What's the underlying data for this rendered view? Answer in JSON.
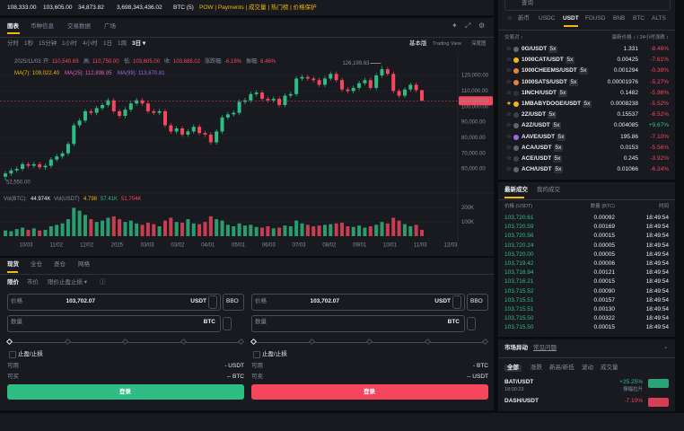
{
  "top_bar": {
    "stats": [
      "108,333.00",
      "103,605.00",
      "34,873.82",
      "3,698,343,436.02",
      "BTC (5)"
    ],
    "links": "POW | Payments | 成交量 | 热门榜 | 价格保护",
    "search": "查询"
  },
  "chart_tabs": [
    "图表",
    "币种信息",
    "交易数据",
    "广场"
  ],
  "intervals": [
    "分时",
    "1秒",
    "15分钟",
    "1小时",
    "4小时",
    "1日",
    "1周",
    "3日 ▾"
  ],
  "views": [
    "基本版",
    "Trading View",
    "深度图"
  ],
  "chart_data": {
    "type": "candlestick",
    "info": [
      {
        "label": "2025/11/03",
        "value": ""
      },
      {
        "label": "开:",
        "value": "110,540.69"
      },
      {
        "label": "高:",
        "value": "110,750.00"
      },
      {
        "label": "低:",
        "value": "103,605.00"
      },
      {
        "label": "收:",
        "value": "103,688.02"
      },
      {
        "label": "涨跌幅:",
        "value": "-6.19%"
      },
      {
        "label": "振幅:",
        "value": "6.46%"
      }
    ],
    "ma": [
      {
        "label": "MA(7):",
        "value": "109,022.40",
        "color": "#f0b90b"
      },
      {
        "label": "MA(25):",
        "value": "112,898.95",
        "color": "#e55fb8"
      },
      {
        "label": "MA(99):",
        "value": "113,870.81",
        "color": "#9c6ade"
      }
    ],
    "up_color": "#2ebd85",
    "down_color": "#f6465d",
    "open": [
      55000,
      57000,
      59000,
      60000,
      63000,
      62000,
      63000,
      61000,
      62000,
      66000,
      68000,
      70000,
      76000,
      88000,
      91000,
      97000,
      96000,
      99000,
      101000,
      104000,
      97000,
      94000,
      98000,
      102000,
      104000,
      102000,
      97000,
      96000,
      97000,
      88000,
      84000,
      86000,
      82000,
      84000,
      87000,
      83000,
      82000,
      77000,
      84000,
      93000,
      95000,
      96000,
      103000,
      104000,
      108000,
      109000,
      105000,
      104000,
      105000,
      101000,
      107000,
      108000,
      118000,
      119000,
      118000,
      117000,
      114000,
      118000,
      121000,
      117000,
      111000,
      110000,
      112000,
      115000,
      117000,
      112000,
      120000,
      124000,
      121000,
      110000,
      107000,
      111000,
      114000,
      110540.69
    ],
    "high": [
      58500,
      60500,
      61500,
      64500,
      64500,
      64500,
      64500,
      63500,
      67500,
      69500,
      71500,
      77500,
      89500,
      92500,
      98500,
      98500,
      100500,
      102500,
      105500,
      105500,
      98500,
      99500,
      103500,
      105500,
      105500,
      103500,
      98500,
      98500,
      98500,
      89500,
      87500,
      87500,
      85500,
      88500,
      88500,
      84500,
      83500,
      85500,
      94500,
      96500,
      97500,
      104500,
      105500,
      109500,
      110500,
      110500,
      106500,
      106500,
      106500,
      108500,
      109500,
      119500,
      120500,
      120500,
      119500,
      118500,
      119500,
      122500,
      122500,
      118500,
      112500,
      113500,
      116500,
      118500,
      118500,
      121500,
      126199.63,
      125500,
      122500,
      111500,
      112500,
      115500,
      115500,
      110750
    ],
    "low": [
      52550,
      55500,
      57500,
      58500,
      60500,
      60500,
      59500,
      59500,
      60500,
      64500,
      66500,
      68500,
      74500,
      86500,
      89500,
      94500,
      94500,
      97500,
      99500,
      95500,
      92500,
      92500,
      96500,
      100500,
      100500,
      95500,
      94500,
      94500,
      86500,
      82500,
      82500,
      80500,
      80500,
      82500,
      81500,
      80500,
      75500,
      75500,
      82500,
      91500,
      93500,
      94500,
      101500,
      102500,
      106500,
      103500,
      102500,
      102500,
      99500,
      99500,
      105500,
      106500,
      116500,
      116500,
      115500,
      112500,
      112500,
      116500,
      115500,
      109500,
      108500,
      108500,
      110500,
      113500,
      110500,
      110500,
      118500,
      119500,
      108500,
      105500,
      105500,
      109500,
      109000,
      103605
    ],
    "close": [
      57000,
      59000,
      60000,
      63000,
      62000,
      63000,
      61000,
      62000,
      66000,
      68000,
      70000,
      76000,
      88000,
      91000,
      97000,
      96000,
      99000,
      101000,
      104000,
      97000,
      94000,
      98000,
      102000,
      104000,
      102000,
      97000,
      96000,
      97000,
      88000,
      84000,
      86000,
      82000,
      84000,
      87000,
      83000,
      82000,
      77000,
      84000,
      93000,
      95000,
      96000,
      103000,
      104000,
      108000,
      109000,
      105000,
      104000,
      105000,
      101000,
      107000,
      108000,
      118000,
      119000,
      118000,
      117000,
      114000,
      118000,
      121000,
      117000,
      111000,
      110000,
      112000,
      115000,
      117000,
      112000,
      120000,
      124000,
      121000,
      110000,
      107000,
      111000,
      114000,
      110540.69,
      103688.02
    ],
    "volume": [
      40000,
      35000,
      50000,
      60000,
      45000,
      55000,
      40000,
      45000,
      70000,
      80000,
      90000,
      120000,
      200000,
      180000,
      150000,
      120000,
      100000,
      110000,
      130000,
      140000,
      120000,
      100000,
      110000,
      90000,
      80000,
      95000,
      85000,
      70000,
      110000,
      130000,
      100000,
      95000,
      120000,
      90000,
      85000,
      100000,
      140000,
      120000,
      110000,
      80000,
      70000,
      90000,
      75000,
      80000,
      65000,
      60000,
      70000,
      55000,
      60000,
      75000,
      70000,
      110000,
      90000,
      80000,
      70000,
      75000,
      80000,
      85000,
      90000,
      95000,
      70000,
      65000,
      75000,
      60000,
      70000,
      80000,
      100000,
      90000,
      130000,
      110000,
      85000,
      70000,
      80000,
      45000
    ],
    "ylim": [
      50000,
      129000
    ],
    "yticks": [
      {
        "value": 120000,
        "label": "120,000.00"
      },
      {
        "value": 110000,
        "label": "110,000.00"
      },
      {
        "value": 100000,
        "label": "100,000.00"
      },
      {
        "value": 90000,
        "label": "90,000.00"
      },
      {
        "value": 80000,
        "label": "80,000.00"
      },
      {
        "value": 70000,
        "label": "70,000.00"
      },
      {
        "value": 60000,
        "label": "60,000.00"
      }
    ],
    "last_price_label": "103,688.02",
    "high_label": "126,199.63",
    "low_label": "52,550.00",
    "vol_ylim": [
      0,
      260000
    ],
    "vol_ticks": [
      {
        "value": 200000,
        "label": "200K"
      },
      {
        "value": 100000,
        "label": "100K"
      }
    ],
    "vol_legend": [
      "Vol(BTC):",
      "44.974K",
      "Vol(USDT)",
      "4.798",
      "57.41K",
      "51.704K"
    ],
    "x_labels": [
      "10/03",
      "11/02",
      "12/02",
      "2025",
      "03/03",
      "03/02",
      "04/01",
      "05/01",
      "06/03",
      "07/03",
      "08/02",
      "09/01",
      "10/01",
      "11/03",
      "12/03"
    ]
  },
  "order_form": {
    "tabs": [
      "现货",
      "全仓",
      "逐仓",
      "网格"
    ],
    "types": [
      "限价",
      "市价",
      "限价止盈止损 ▾"
    ],
    "buy": {
      "price_label": "价格",
      "price": "103,702.07",
      "quote": "USDT",
      "bbo": "BBO",
      "qty_label": "数量",
      "base": "BTC",
      "tpsl": "止盈/止损",
      "avail_label": "可用",
      "avail": "- USDT",
      "max_label": "可买",
      "max": "-- BTC",
      "button": "登录"
    },
    "sell": {
      "price_label": "价格",
      "price": "103,702.07",
      "quote": "USDT",
      "bbo": "BBO",
      "qty_label": "数量",
      "base": "BTC",
      "tpsl": "止盈/止损",
      "avail_label": "可用",
      "avail": "- BTC",
      "max_label": "可卖",
      "max": "-- USDT",
      "button": "登录"
    }
  },
  "markets": {
    "tabs": [
      "☆",
      "新币",
      "USDC",
      "USDT",
      "FDUSD",
      "BNB",
      "BTC",
      "ALTS"
    ],
    "header": [
      "交易对 ↕",
      "最新价格 ↕ / 24小时涨跌 ↕"
    ],
    "rows": [
      [
        "0G/USDT",
        "5x",
        "1.331",
        "-8.46%"
      ],
      [
        "1000CAT/USDT",
        "5x",
        "0.00425",
        "-7.61%"
      ],
      [
        "1000CHEEMS/USDT",
        "5x",
        "0.001294",
        "-0.38%"
      ],
      [
        "1000SATS/USDT",
        "5x",
        "0.00001976",
        "-5.27%"
      ],
      [
        "1INCH/USDT",
        "5x",
        "0.1482",
        "-5.96%"
      ],
      [
        "1MBABYDOGE/USDT",
        "5x",
        "0.0008238",
        "-5.52%"
      ],
      [
        "2Z/USDT",
        "5x",
        "0.15537",
        "-6.52%"
      ],
      [
        "A2Z/USDT",
        "5x",
        "0.004085",
        "+9.67%"
      ],
      [
        "AAVE/USDT",
        "5x",
        "195.86",
        "-7.10%"
      ],
      [
        "ACA/USDT",
        "5x",
        "0.0153",
        "-5.56%"
      ],
      [
        "ACE/USDT",
        "5x",
        "0.245",
        "-3.92%"
      ],
      [
        "ACH/USDT",
        "5x",
        "0.01066",
        "-6.24%"
      ]
    ]
  },
  "trades": {
    "tabs": [
      "最新成交",
      "我的成交"
    ],
    "header": [
      "价格 (USDT)",
      "数量 (BTC)",
      "时间"
    ],
    "color": "#2ebd85",
    "rows": [
      [
        "103,720.61",
        "0.00092",
        "18:49:54"
      ],
      [
        "103,720.59",
        "0.00169",
        "18:49:54"
      ],
      [
        "103,720.56",
        "0.00015",
        "18:49:54"
      ],
      [
        "103,720.24",
        "0.00005",
        "18:49:54"
      ],
      [
        "103,720.00",
        "0.00005",
        "18:49:54"
      ],
      [
        "103,719.42",
        "0.00006",
        "18:49:54"
      ],
      [
        "103,718.94",
        "0.00121",
        "18:49:54"
      ],
      [
        "103,716.21",
        "0.00015",
        "18:49:54"
      ],
      [
        "103,715.52",
        "0.00090",
        "18:49:54"
      ],
      [
        "103,715.51",
        "0.00157",
        "18:49:54"
      ],
      [
        "103,715.51",
        "0.00130",
        "18:49:54"
      ],
      [
        "103,715.50",
        "0.00322",
        "18:49:54"
      ],
      [
        "103,715.50",
        "0.00015",
        "18:49:54"
      ]
    ]
  },
  "movers": {
    "title": "市场异动",
    "faq": "常见问题",
    "tabs": [
      "全部",
      "涨跌",
      "新高/新低",
      "波动",
      "成交量"
    ],
    "rows": [
      {
        "pair": "BAT/USDT",
        "time": "18:00:23",
        "change": "+25.25%",
        "event": "振幅拉升"
      },
      {
        "pair": "DASH/USDT",
        "change": "-7.10%"
      }
    ]
  }
}
